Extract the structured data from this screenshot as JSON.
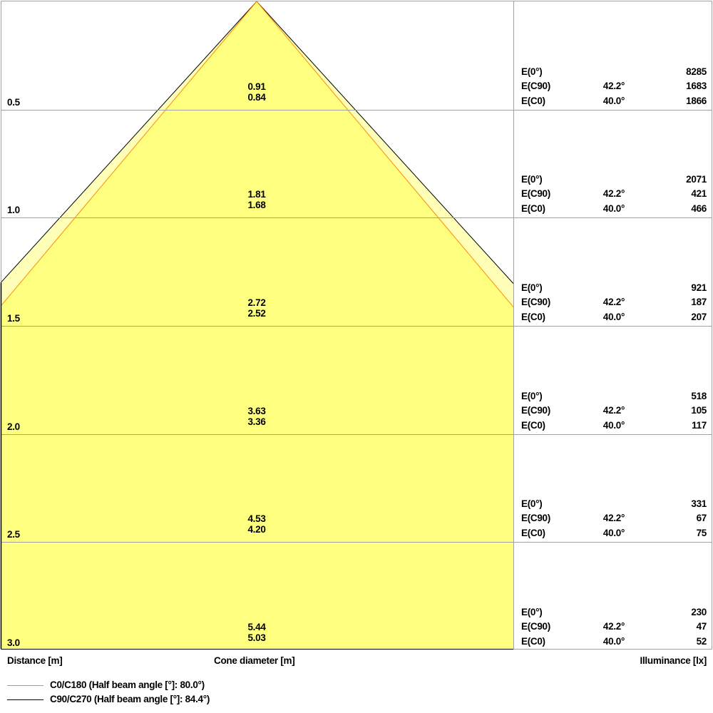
{
  "colors": {
    "c0_line": "#ff8c00",
    "c90_line": "#000000",
    "fill_c0": "#ffff80",
    "fill_c90": "#ffffb8",
    "grid": "#a0a0a0"
  },
  "half_beam_angle_c0": 80.0,
  "half_beam_angle_c90": 84.4,
  "rows": [
    {
      "distance": "0.5",
      "cone_c90": "0.91",
      "cone_c0": "0.84",
      "e0_label": "E(0°)",
      "e0": "8285",
      "ec90_label": "E(C90)",
      "ec90_angle": "42.2°",
      "ec90": "1683",
      "ec0_label": "E(C0)",
      "ec0_angle": "40.0°",
      "ec0": "1866"
    },
    {
      "distance": "1.0",
      "cone_c90": "1.81",
      "cone_c0": "1.68",
      "e0_label": "E(0°)",
      "e0": "2071",
      "ec90_label": "E(C90)",
      "ec90_angle": "42.2°",
      "ec90": "421",
      "ec0_label": "E(C0)",
      "ec0_angle": "40.0°",
      "ec0": "466"
    },
    {
      "distance": "1.5",
      "cone_c90": "2.72",
      "cone_c0": "2.52",
      "e0_label": "E(0°)",
      "e0": "921",
      "ec90_label": "E(C90)",
      "ec90_angle": "42.2°",
      "ec90": "187",
      "ec0_label": "E(C0)",
      "ec0_angle": "40.0°",
      "ec0": "207"
    },
    {
      "distance": "2.0",
      "cone_c90": "3.63",
      "cone_c0": "3.36",
      "e0_label": "E(0°)",
      "e0": "518",
      "ec90_label": "E(C90)",
      "ec90_angle": "42.2°",
      "ec90": "105",
      "ec0_label": "E(C0)",
      "ec0_angle": "40.0°",
      "ec0": "117"
    },
    {
      "distance": "2.5",
      "cone_c90": "4.53",
      "cone_c0": "4.20",
      "e0_label": "E(0°)",
      "e0": "331",
      "ec90_label": "E(C90)",
      "ec90_angle": "42.2°",
      "ec90": "67",
      "ec0_label": "E(C0)",
      "ec0_angle": "40.0°",
      "ec0": "75"
    },
    {
      "distance": "3.0",
      "cone_c90": "5.44",
      "cone_c0": "5.03",
      "e0_label": "E(0°)",
      "e0": "230",
      "ec90_label": "E(C90)",
      "ec90_angle": "42.2°",
      "ec90": "47",
      "ec0_label": "E(C0)",
      "ec0_angle": "40.0°",
      "ec0": "52"
    }
  ],
  "labels": {
    "distance": "Distance [m]",
    "cone": "Cone diameter [m]",
    "illuminance": "Illuminance [lx]"
  },
  "legend": [
    {
      "label": "C0/C180 (Half beam angle [°]: 80.0°)",
      "color": "#ff8c00"
    },
    {
      "label": "C90/C270 (Half beam angle [°]: 84.4°)",
      "color": "#000000"
    }
  ]
}
